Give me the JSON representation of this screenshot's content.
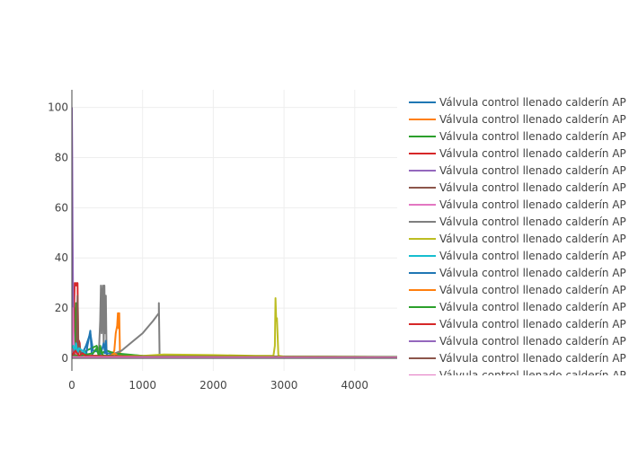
{
  "chart_data": {
    "type": "line",
    "title": "",
    "xlabel": "",
    "ylabel": "",
    "xlim": [
      0,
      4600
    ],
    "ylim": [
      -5,
      107
    ],
    "x_ticks": [
      0,
      1000,
      2000,
      3000,
      4000
    ],
    "y_ticks": [
      0,
      20,
      40,
      60,
      80,
      100
    ],
    "grid": true,
    "legend_position": "right",
    "legend_visible_count": 17,
    "colors": [
      "#1f77b4",
      "#ff7f0e",
      "#2ca02c",
      "#d62728",
      "#9467bd",
      "#8c564b",
      "#e377c2",
      "#7f7f7f",
      "#bcbd22",
      "#17becf"
    ],
    "series": [
      {
        "name": "Válvula control llenado calderín AP",
        "x": [
          0,
          30,
          60,
          100,
          150,
          200,
          260,
          300,
          500,
          1000,
          2000,
          3000,
          4600
        ],
        "y": [
          5,
          6,
          4,
          3,
          2,
          5,
          10,
          3,
          2,
          1,
          0.8,
          0.6,
          0.5
        ]
      },
      {
        "name": "Válvula control llenado calderín AP",
        "x": [
          0,
          100,
          300,
          550,
          600,
          620,
          640,
          650,
          660,
          670,
          680,
          700,
          1000,
          2000,
          3000,
          4600
        ],
        "y": [
          2,
          1,
          1,
          1,
          3,
          10,
          13,
          18,
          12,
          18,
          2,
          1,
          0.8,
          0.6,
          0.5,
          0.4
        ]
      },
      {
        "name": "Válvula control llenado calderín AP",
        "x": [
          0,
          10,
          20,
          30,
          40,
          50,
          60,
          70,
          80,
          100,
          150,
          200,
          350,
          400,
          500,
          600,
          1000,
          2000,
          4600
        ],
        "y": [
          3,
          15,
          26,
          8,
          20,
          4,
          22,
          5,
          2,
          1,
          1,
          3,
          5,
          2,
          3,
          2,
          1,
          0.8,
          0.5
        ]
      },
      {
        "name": "Válvula control llenado calderín AP",
        "x": [
          0,
          20,
          40,
          50,
          60,
          70,
          80,
          90,
          100,
          110,
          120,
          150,
          200,
          300,
          1000,
          4600
        ],
        "y": [
          1,
          2,
          30,
          30,
          29,
          30,
          30,
          2,
          7,
          6,
          2,
          1,
          1,
          0.8,
          0.6,
          0.4
        ]
      },
      {
        "name": "Válvula control llenado calderín AP",
        "x": [
          0,
          5,
          10,
          15,
          20,
          30,
          40,
          60,
          100,
          200,
          500,
          1000,
          2000,
          4600
        ],
        "y": [
          100,
          80,
          50,
          30,
          10,
          3,
          1,
          0.7,
          0.6,
          0.5,
          0.5,
          0.4,
          0.4,
          0.3
        ]
      },
      {
        "name": "Válvula control llenado calderín AP",
        "x": [
          0,
          60,
          70,
          80,
          90,
          100,
          110,
          130,
          200,
          500,
          1000,
          4600
        ],
        "y": [
          1,
          2,
          10,
          25,
          8,
          3,
          5,
          1,
          1,
          0.8,
          0.6,
          0.4
        ]
      },
      {
        "name": "Válvula control llenado calderín AP",
        "x": [
          0,
          10,
          20,
          30,
          60,
          100,
          200,
          500,
          1000,
          4600
        ],
        "y": [
          2,
          20,
          10,
          4,
          2,
          1,
          1,
          0.8,
          0.6,
          0.4
        ]
      },
      {
        "name": "Válvula control llenado calderín AP",
        "x": [
          0,
          380,
          400,
          410,
          420,
          430,
          440,
          450,
          460,
          470,
          480,
          490,
          500,
          520,
          700,
          1000,
          1150,
          1230,
          1230,
          1240,
          1300,
          2000,
          4600
        ],
        "y": [
          1,
          1,
          15,
          29,
          10,
          25,
          29,
          5,
          29,
          10,
          25,
          2,
          1,
          1,
          3,
          10,
          15,
          18,
          22,
          1,
          1,
          0.8,
          0.6
        ]
      },
      {
        "name": "Válvula control llenado calderín AP",
        "x": [
          0,
          200,
          400,
          600,
          1000,
          1300,
          2000,
          2600,
          2850,
          2870,
          2880,
          2890,
          2900,
          2920,
          3000,
          4000,
          4600
        ],
        "y": [
          1,
          1,
          1,
          1,
          1,
          1.5,
          1.3,
          1,
          1,
          5,
          24,
          15,
          16,
          1,
          0.7,
          0.6,
          0.5
        ]
      },
      {
        "name": "Válvula control llenado calderín AP",
        "x": [
          0,
          20,
          40,
          60,
          80,
          100,
          150,
          200,
          250,
          300,
          500,
          1000,
          4600
        ],
        "y": [
          4,
          5,
          3,
          6,
          2,
          4,
          3,
          2,
          1,
          0.8,
          0.7,
          0.6,
          0.5
        ]
      },
      {
        "name": "Válvula control llenado calderín AP",
        "x": [
          0,
          200,
          220,
          240,
          260,
          280,
          300,
          400,
          450,
          470,
          480,
          490,
          500,
          520,
          600,
          1000,
          4600
        ],
        "y": [
          1,
          1,
          5,
          8,
          11,
          2,
          1,
          1,
          6,
          2,
          7,
          3,
          1,
          1,
          0.8,
          0.6,
          0.5
        ]
      },
      {
        "name": "Válvula control llenado calderín AP",
        "x": [
          0,
          100,
          300,
          550,
          600,
          650,
          700,
          1000,
          4600
        ],
        "y": [
          1,
          1,
          1,
          1,
          2,
          1,
          0.8,
          0.6,
          0.4
        ]
      },
      {
        "name": "Válvula control llenado calderín AP",
        "x": [
          0,
          100,
          300,
          350,
          380,
          400,
          420,
          450,
          500,
          1000,
          4600
        ],
        "y": [
          1,
          1,
          2,
          4,
          1,
          5,
          2,
          1,
          1,
          0.7,
          0.5
        ]
      },
      {
        "name": "Válvula control llenado calderín AP",
        "x": [
          0,
          50,
          100,
          150,
          200,
          1000,
          4600
        ],
        "y": [
          1,
          3,
          1,
          2,
          1,
          0.6,
          0.4
        ]
      },
      {
        "name": "Válvula control llenado calderín AP",
        "x": [
          0,
          100,
          1000,
          4600
        ],
        "y": [
          0.5,
          0.5,
          0.4,
          0.3
        ]
      },
      {
        "name": "Válvula control llenado calderín AP",
        "x": [
          0,
          100,
          1000,
          4600
        ],
        "y": [
          0.6,
          0.5,
          0.4,
          0.3
        ]
      },
      {
        "name": "Válvula control llenado calderín AP",
        "x": [
          0,
          100,
          1000,
          4600
        ],
        "y": [
          0.5,
          0.4,
          0.4,
          0.3
        ]
      }
    ]
  }
}
